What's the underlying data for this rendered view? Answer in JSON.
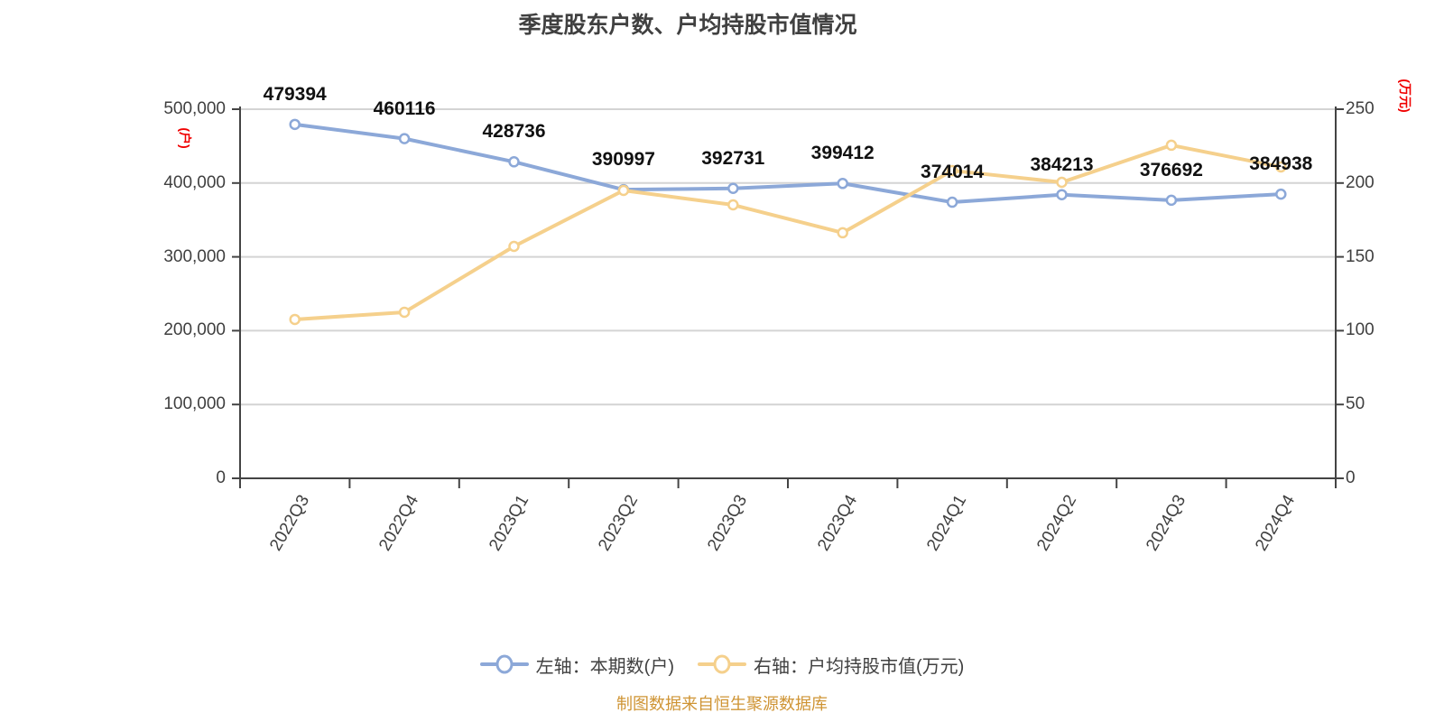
{
  "title": "季度股东户数、户均持股市值情况",
  "source_note": "制图数据来自恒生聚源数据库",
  "colors": {
    "left_series": "#8CA8D8",
    "right_series": "#F5D08C",
    "axis_name_red": "#F00000",
    "axis_text": "#3f3f3f",
    "title_text": "#404040",
    "gridline": "#d4d4d4",
    "axis_line": "#444444",
    "source_note": "#cf9434",
    "data_label": "#111111"
  },
  "left_axis": {
    "name": "(户)",
    "ticks": [
      "500,000",
      "400,000",
      "300,000",
      "200,000",
      "100,000",
      "0"
    ]
  },
  "right_axis": {
    "name": "(万元)",
    "ticks": [
      "250",
      "200",
      "150",
      "100",
      "50",
      "0"
    ]
  },
  "legend": {
    "items": [
      {
        "label": "左轴：本期数(户)",
        "color": "#8CA8D8"
      },
      {
        "label": "右轴：户均持股市值(万元)",
        "color": "#F5D08C"
      }
    ]
  },
  "chart_data": {
    "type": "line",
    "title": "季度股东户数、户均持股市值情况",
    "categories": [
      "2022Q3",
      "2022Q4",
      "2023Q1",
      "2023Q2",
      "2023Q3",
      "2023Q4",
      "2024Q1",
      "2024Q2",
      "2024Q3",
      "2024Q4"
    ],
    "series": [
      {
        "name": "左轴：本期数(户)",
        "axis": "left",
        "color": "#8CA8D8",
        "values": [
          479394,
          460116,
          428736,
          390997,
          392731,
          399412,
          374014,
          384213,
          376692,
          384938
        ],
        "data_labels_shown": true
      },
      {
        "name": "右轴：户均持股市值(万元)",
        "axis": "right",
        "color": "#F5D08C",
        "values": [
          107.6,
          112.5,
          157.1,
          195.0,
          185.2,
          166.3,
          208.4,
          200.5,
          225.6,
          210.9
        ],
        "data_labels_shown": false,
        "values_estimated_from_pixels": true
      }
    ],
    "left_ylim": [
      0,
      500000
    ],
    "right_ylim": [
      0,
      250
    ],
    "grid": true,
    "legend_position": "bottom"
  }
}
